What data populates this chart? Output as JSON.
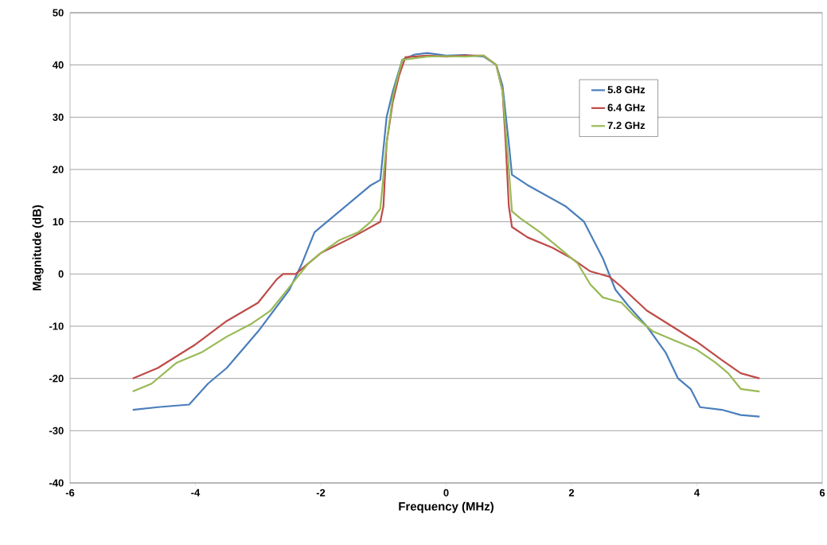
{
  "chart_data": {
    "type": "line",
    "xlabel": "Frequency (MHz)",
    "ylabel": "Magnitude (dB)",
    "xlim": [
      -6,
      6
    ],
    "xticks": [
      -6,
      -4,
      -2,
      0,
      2,
      4,
      6
    ],
    "ylim": [
      -40,
      50
    ],
    "yticks": [
      -40,
      -30,
      -20,
      -10,
      0,
      10,
      20,
      30,
      40,
      50
    ],
    "grid": "y",
    "legend": "top right",
    "marker": "none",
    "line_style": "solid",
    "series": [
      {
        "name": "5.8 GHz",
        "color": "#4a7ebb",
        "x": [
          -5,
          -4.6,
          -4.1,
          -3.8,
          -3.5,
          -3,
          -2.5,
          -2.3,
          -2.1,
          -1.8,
          -1.5,
          -1.2,
          -1.05,
          -0.95,
          -0.85,
          -0.7,
          -0.5,
          -0.3,
          0,
          0.3,
          0.6,
          0.8,
          0.9,
          1.0,
          1.05,
          1.3,
          1.6,
          1.9,
          2.2,
          2.5,
          2.7,
          2.9,
          3.2,
          3.5,
          3.7,
          3.9,
          4.05,
          4.4,
          4.7,
          5.0
        ],
        "values": [
          -26,
          -25.5,
          -25,
          -21,
          -18,
          -11,
          -3,
          2,
          8,
          11,
          14,
          17,
          18,
          30,
          35,
          41,
          42,
          42.3,
          41.8,
          41.9,
          41.6,
          40,
          36,
          25,
          19,
          17,
          15,
          13,
          10,
          3,
          -3,
          -6,
          -10,
          -15,
          -20,
          -22,
          -25.5,
          -26,
          -27,
          -27.3
        ]
      },
      {
        "name": "6.4 GHz",
        "color": "#be4b48",
        "x": [
          -5,
          -4.6,
          -4,
          -3.5,
          -3,
          -2.7,
          -2.6,
          -2.4,
          -2.2,
          -2,
          -1.5,
          -1.2,
          -1.05,
          -1.0,
          -0.95,
          -0.85,
          -0.75,
          -0.65,
          -0.3,
          0,
          0.3,
          0.6,
          0.8,
          0.9,
          0.95,
          1.0,
          1.05,
          1.3,
          1.7,
          2.0,
          2.3,
          2.6,
          2.8,
          3.2,
          3.6,
          4.0,
          4.4,
          4.7,
          5.0
        ],
        "values": [
          -20,
          -18,
          -13.5,
          -9,
          -5.5,
          -1,
          0,
          0,
          2,
          4,
          7,
          9,
          10,
          13,
          25,
          33,
          38,
          41.5,
          41.8,
          41.6,
          41.8,
          41.8,
          40,
          35,
          25,
          13,
          9,
          7,
          5,
          3,
          0.5,
          -0.5,
          -2.5,
          -7,
          -10,
          -13,
          -16.5,
          -19,
          -20
        ]
      },
      {
        "name": "7.2 GHz",
        "color": "#98b954",
        "x": [
          -5,
          -4.7,
          -4.3,
          -3.9,
          -3.5,
          -3.1,
          -2.8,
          -2.6,
          -2.4,
          -2.2,
          -2,
          -1.7,
          -1.4,
          -1.2,
          -1.05,
          -0.95,
          -0.85,
          -0.7,
          -0.3,
          0,
          0.3,
          0.6,
          0.8,
          0.9,
          1.0,
          1.05,
          1.2,
          1.5,
          1.8,
          2.1,
          2.3,
          2.5,
          2.8,
          3.0,
          3.3,
          3.6,
          4.0,
          4.3,
          4.5,
          4.7,
          5.0
        ],
        "values": [
          -22.5,
          -21,
          -17,
          -15,
          -12,
          -9.5,
          -7,
          -4,
          -1,
          2,
          4,
          6.5,
          8,
          10,
          12.5,
          25,
          34,
          41,
          41.6,
          41.7,
          41.6,
          41.8,
          40,
          35,
          20,
          12,
          10.5,
          8,
          5,
          2,
          -2,
          -4.5,
          -5.5,
          -8,
          -11,
          -12.5,
          -14.5,
          -17,
          -19,
          -22,
          -22.5
        ]
      }
    ]
  }
}
